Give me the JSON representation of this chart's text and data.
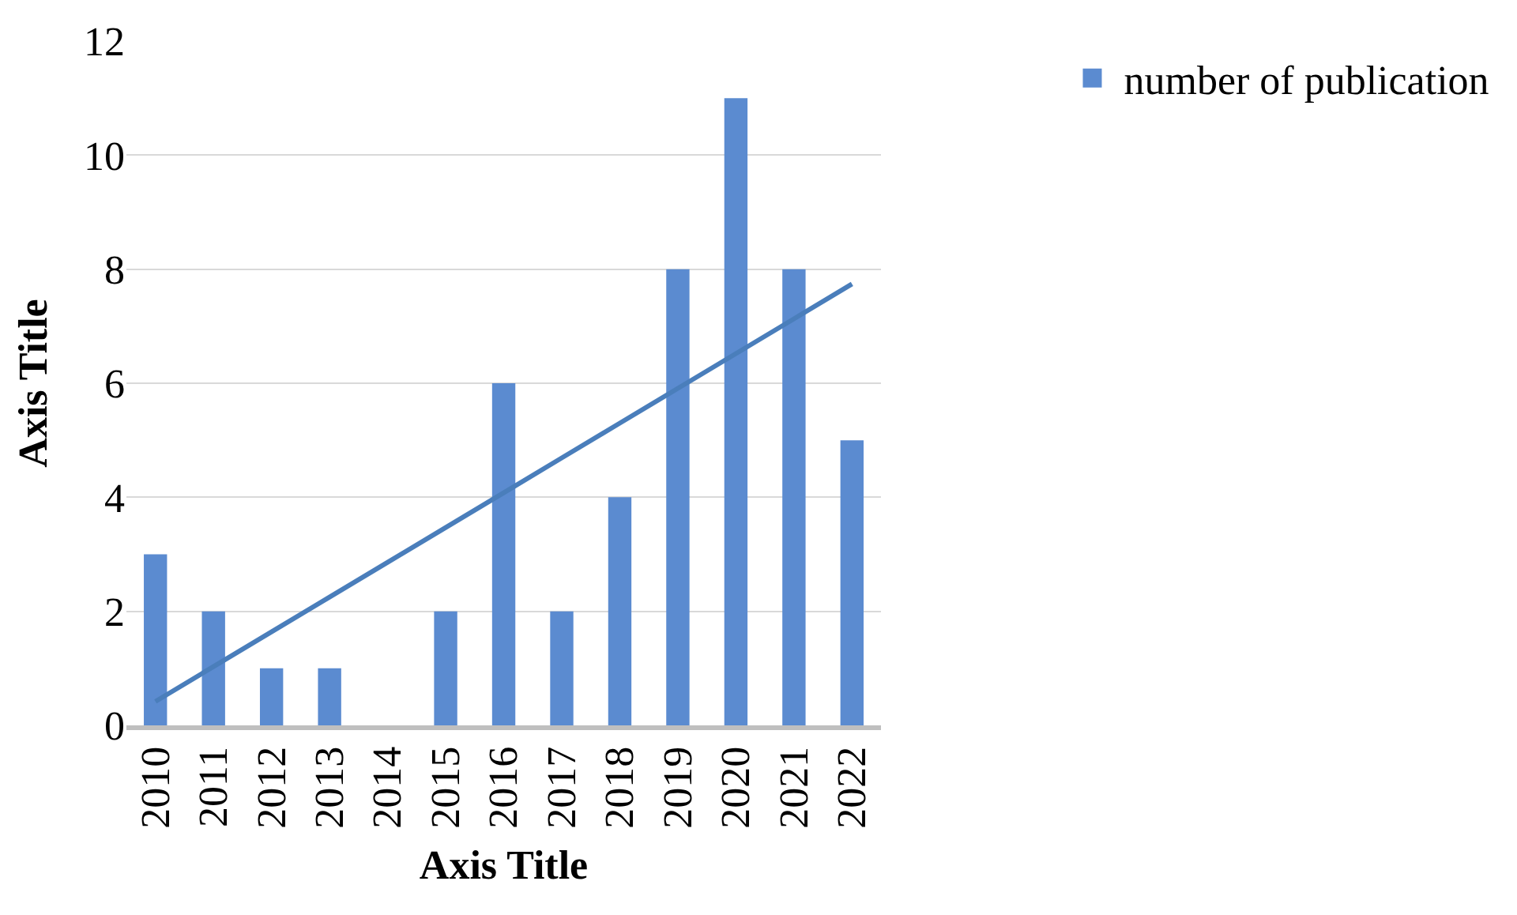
{
  "chart_data": {
    "type": "bar",
    "xlabel": "Axis Title",
    "ylabel": "Axis Title",
    "categories": [
      "2010",
      "2011",
      "2012",
      "2013",
      "2014",
      "2015",
      "2016",
      "2017",
      "2018",
      "2019",
      "2020",
      "2021",
      "2022"
    ],
    "series": [
      {
        "name": "number of publication",
        "color": "#5b8bd0",
        "values": [
          3,
          2,
          1,
          1,
          0,
          2,
          6,
          2,
          4,
          8,
          11,
          8,
          5
        ]
      },
      {
        "type": "line",
        "color": "#4a7ebb",
        "values": [
          0.42,
          1.03,
          1.64,
          2.25,
          2.86,
          3.47,
          4.08,
          4.69,
          5.3,
          5.91,
          6.52,
          7.13,
          7.74
        ]
      }
    ],
    "ylim": [
      0,
      12
    ],
    "yticks": [
      0,
      2,
      4,
      6,
      8,
      10,
      12
    ],
    "grid": "y",
    "legend": "top right"
  }
}
